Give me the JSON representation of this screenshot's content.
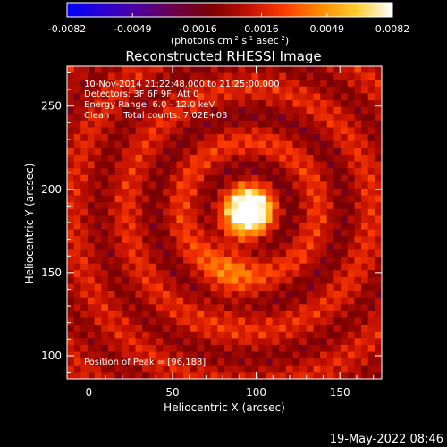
{
  "chart_data": {
    "type": "heatmap",
    "title": "Reconstructed RHESSI Image",
    "xlabel": "Heliocentric X (arcsec)",
    "ylabel": "Heliocentric Y (arcsec)",
    "xlim": [
      -13,
      175
    ],
    "ylim": [
      86,
      274
    ],
    "x_ticks": [
      0,
      50,
      100,
      150
    ],
    "y_ticks": [
      100,
      150,
      200,
      250
    ],
    "colorbar": {
      "label_prefix": "(photons cm",
      "label_sup1": "-2",
      "label_mid": " s",
      "label_sup2": "-1",
      "label_mid2": " asec",
      "label_sup3": "-2",
      "label_suffix": ")",
      "range": [
        -0.0082,
        0.0082
      ],
      "tick_labels": [
        "-0.0082",
        "-0.0049",
        "-0.0016",
        "0.0016",
        "0.0049",
        "0.0082"
      ],
      "colors": [
        "#0000ff",
        "#2a00d0",
        "#50009a",
        "#6a0045",
        "#7a0000",
        "#c01000",
        "#ff3a00",
        "#ff8a00",
        "#ffcc30",
        "#ffffff"
      ]
    },
    "annotations": [
      "10-Nov-2014 21:22:48.000 to 21:25:00.000",
      "Detectors: 3F 6F 9F, Att 0",
      "Energy Range: 6.0 - 12.0 keV",
      "Clean     Total counts: 7.02E+03"
    ],
    "peak_label": "Position of Peak = [96,188]",
    "peak": {
      "x": 96,
      "y": 188,
      "value": 0.0082
    }
  },
  "footer": {
    "timestamp": "19-May-2022 08:46"
  }
}
